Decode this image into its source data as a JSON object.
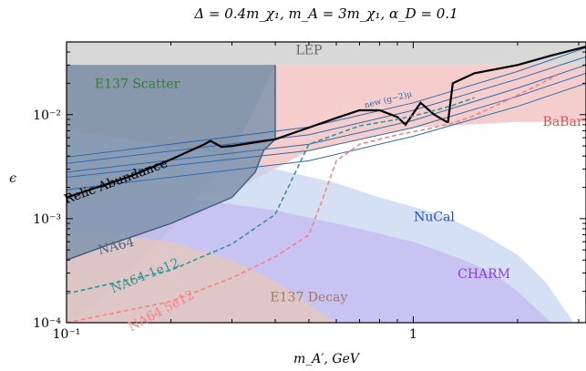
{
  "chart_data": {
    "type": "line",
    "title": "Δ = 0.4m_χ₁, m_A = 3m_χ₁, α_D = 0.1",
    "xlabel": "m_A′, GeV",
    "ylabel": "ϵ",
    "xscale": "log",
    "yscale": "log",
    "xlim": [
      0.1,
      3.15
    ],
    "ylim": [
      0.0001,
      0.05
    ],
    "x_ticks": [
      {
        "value": 0.1,
        "label": "10⁻¹"
      },
      {
        "value": 1,
        "label": "1"
      }
    ],
    "y_ticks": [
      {
        "value": 0.0001,
        "label": "10⁻⁴"
      },
      {
        "value": 0.001,
        "label": "10⁻³"
      },
      {
        "value": 0.01,
        "label": "10⁻²"
      }
    ],
    "regions": [
      {
        "name": "LEP",
        "color": "#c8c8c8",
        "points": [
          [
            0.1,
            0.05
          ],
          [
            3.15,
            0.05
          ],
          [
            3.15,
            0.03
          ],
          [
            0.1,
            0.03
          ]
        ]
      },
      {
        "name": "BaBar",
        "color": "#f2b8b8",
        "points": [
          [
            0.1,
            0.0016
          ],
          [
            0.2,
            0.0016
          ],
          [
            0.3,
            0.0018
          ],
          [
            0.5,
            0.0045
          ],
          [
            1,
            0.0075
          ],
          [
            2,
            0.0085
          ],
          [
            3.15,
            0.0085
          ],
          [
            3.15,
            0.03
          ],
          [
            0.1,
            0.03
          ]
        ]
      },
      {
        "name": "E137 Scatter",
        "color": "#9a9a9a",
        "points": [
          [
            0.1,
            0.03
          ],
          [
            0.4,
            0.03
          ],
          [
            0.3,
            0.004
          ],
          [
            0.2,
            0.0008
          ],
          [
            0.15,
            0.0003
          ],
          [
            0.12,
            0.00015
          ],
          [
            0.1,
            0.0001
          ]
        ]
      },
      {
        "name": "NuCal",
        "color": "#c5d3f0",
        "points": [
          [
            0.1,
            0.0001
          ],
          [
            0.1,
            0.007
          ],
          [
            0.2,
            0.005
          ],
          [
            0.3,
            0.004
          ],
          [
            0.4,
            0.003
          ],
          [
            0.6,
            0.0022
          ],
          [
            0.8,
            0.0016
          ],
          [
            1.2,
            0.0011
          ],
          [
            1.6,
            0.0007
          ],
          [
            2,
            0.00045
          ],
          [
            2.4,
            0.00025
          ],
          [
            2.8,
            0.00012
          ],
          [
            2.9,
            0.0001
          ]
        ]
      },
      {
        "name": "CHARM",
        "color": "#c3b6f2",
        "points": [
          [
            0.1,
            0.0001
          ],
          [
            0.1,
            0.0014
          ],
          [
            0.25,
            0.0015
          ],
          [
            0.4,
            0.0012
          ],
          [
            0.7,
            0.0008
          ],
          [
            1,
            0.0006
          ],
          [
            1.4,
            0.0004
          ],
          [
            1.7,
            0.0003
          ],
          [
            2,
            0.0002
          ],
          [
            2.3,
            0.00013
          ],
          [
            2.5,
            0.0001
          ]
        ]
      },
      {
        "name": "E137 Decay",
        "color": "#e8c8b4",
        "points": [
          [
            0.1,
            0.0001
          ],
          [
            0.1,
            0.0008
          ],
          [
            0.2,
            0.0006
          ],
          [
            0.3,
            0.0004
          ],
          [
            0.4,
            0.00025
          ],
          [
            0.5,
            0.00015
          ],
          [
            0.6,
            0.0001
          ]
        ]
      },
      {
        "name": "NA64",
        "color": "#8094ad",
        "points": [
          [
            0.1,
            0.0004
          ],
          [
            0.13,
            0.00055
          ],
          [
            0.2,
            0.0009
          ],
          [
            0.3,
            0.0016
          ],
          [
            0.35,
            0.0028
          ],
          [
            0.37,
            0.0045
          ],
          [
            0.4,
            0.0058
          ],
          [
            0.4,
            0.03
          ],
          [
            0.1,
            0.03
          ]
        ]
      }
    ],
    "series": [
      {
        "name": "new (g-2)μ",
        "color": "#2b6cb0",
        "bands": [
          {
            "x": [
              0.1,
              0.5,
              1,
              2,
              3.15
            ],
            "y": [
              0.0025,
              0.0045,
              0.0075,
              0.015,
              0.025
            ]
          },
          {
            "x": [
              0.1,
              0.5,
              1,
              2,
              3.15
            ],
            "y": [
              0.0019,
              0.0036,
              0.0062,
              0.012,
              0.02
            ]
          },
          {
            "x": [
              0.1,
              0.5,
              1,
              2,
              3.15
            ],
            "y": [
              0.0028,
              0.0052,
              0.0088,
              0.018,
              0.03
            ]
          },
          {
            "x": [
              0.1,
              0.5,
              1,
              2,
              3.15
            ],
            "y": [
              0.0034,
              0.0064,
              0.011,
              0.022,
              0.036
            ]
          },
          {
            "x": [
              0.1,
              0.5,
              1,
              2,
              3.15
            ],
            "y": [
              0.0039,
              0.0076,
              0.013,
              0.026,
              0.044
            ]
          }
        ]
      },
      {
        "name": "Relic Abundance",
        "color": "#000000",
        "x": [
          0.1,
          0.15,
          0.2,
          0.25,
          0.26,
          0.28,
          0.3,
          0.4,
          0.5,
          0.6,
          0.7,
          0.8,
          0.9,
          0.95,
          1.05,
          1.15,
          1.25,
          1.26,
          1.3,
          1.5,
          2,
          2.5,
          3.15
        ],
        "y": [
          0.0016,
          0.0025,
          0.0037,
          0.0052,
          0.0056,
          0.0049,
          0.005,
          0.0058,
          0.0075,
          0.0093,
          0.011,
          0.011,
          0.0095,
          0.008,
          0.013,
          0.01,
          0.0085,
          0.0085,
          0.02,
          0.025,
          0.03,
          0.037,
          0.045
        ]
      },
      {
        "name": "NA64 1e12",
        "color": "#319795",
        "dashed": true,
        "x": [
          0.1,
          0.2,
          0.3,
          0.4,
          0.45,
          0.5,
          0.7,
          0.9,
          1.1,
          1.3,
          1.5
        ],
        "y": [
          0.00019,
          0.00032,
          0.00057,
          0.0011,
          0.0025,
          0.0052,
          0.0078,
          0.009,
          0.0105,
          0.0123,
          0.0145
        ]
      },
      {
        "name": "NA64 5e12",
        "color": "#fc8181",
        "dashed": true,
        "x": [
          0.1,
          0.2,
          0.3,
          0.4,
          0.5,
          0.55,
          0.6,
          0.7,
          0.9,
          1.1,
          1.3,
          1.5,
          1.8,
          2.2,
          2.6
        ],
        "y": [
          0.0001,
          0.00016,
          0.00027,
          0.00043,
          0.0007,
          0.0016,
          0.0036,
          0.0052,
          0.0064,
          0.0073,
          0.0083,
          0.0098,
          0.013,
          0.018,
          0.024
        ]
      }
    ],
    "labels": [
      {
        "text": "LEP",
        "color": "#666666",
        "x": 0.5,
        "y": 0.038,
        "rotate": 0
      },
      {
        "text": "E137 Scatter",
        "color": "#2f7d32",
        "x": 0.16,
        "y": 0.018,
        "rotate": 0
      },
      {
        "text": "BaBar",
        "color": "#d9534f",
        "x": 2.7,
        "y": 0.0078,
        "rotate": 0
      },
      {
        "text": "Relic Abundance",
        "color": "#000000",
        "x": 0.14,
        "y": 0.0021,
        "rotate": -20
      },
      {
        "text": "new (g−2)μ",
        "color": "#2b6cb0",
        "x": 0.85,
        "y": 0.0132,
        "rotate": -14
      },
      {
        "text": "NuCal",
        "color": "#2b4fb8",
        "x": 1.15,
        "y": 0.00095,
        "rotate": 0
      },
      {
        "text": "CHARM",
        "color": "#8b3fe0",
        "x": 1.6,
        "y": 0.00027,
        "rotate": 0
      },
      {
        "text": "E137 Decay",
        "color": "#a07a5a",
        "x": 0.5,
        "y": 0.00016,
        "rotate": 0
      },
      {
        "text": "NA64",
        "color": "#4a6683",
        "x": 0.14,
        "y": 0.0005,
        "rotate": -14
      },
      {
        "text": "NA64 1e12",
        "color": "#319795",
        "x": 0.17,
        "y": 0.00026,
        "rotate": -22
      },
      {
        "text": "NA64 5e12",
        "color": "#fc8181",
        "x": 0.19,
        "y": 0.00012,
        "rotate": -28
      }
    ]
  }
}
